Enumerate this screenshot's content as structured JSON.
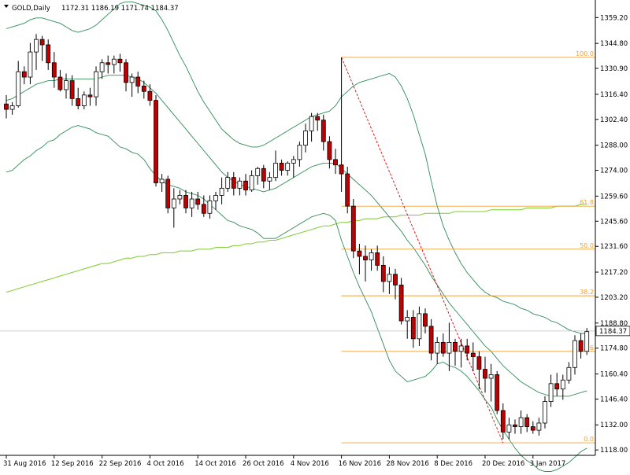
{
  "header": {
    "symbol": "GOLD,Daily",
    "ohlc": "1172.31 1186.19 1171.74 1184.37"
  },
  "colors": {
    "bull": "#ffffff",
    "bear": "#c00000",
    "wick": "#000000",
    "bollinger": "#2e8b57",
    "ma": "#7ccd2a",
    "fib": "#f0a030",
    "trend": "#e00000",
    "price_line": "#c0c0c0"
  },
  "chart_data": {
    "type": "candlestick",
    "title": "GOLD,Daily",
    "grid": false,
    "y_range": [
      1115,
      1369
    ],
    "y_ticks": [
      "1359.20",
      "1344.80",
      "1330.90",
      "1316.40",
      "1302.40",
      "1288.00",
      "1274.00",
      "1259.60",
      "1245.60",
      "1231.60",
      "1217.20",
      "1203.20",
      "1188.80",
      "1174.80",
      "1160.40",
      "1146.40",
      "1132.00",
      "1118.00"
    ],
    "x_ticks": [
      "31 Aug 2016",
      "12 Sep 2016",
      "22 Sep 2016",
      "4 Oct 2016",
      "14 Oct 2016",
      "26 Oct 2016",
      "4 Nov 2016",
      "16 Nov 2016",
      "28 Nov 2016",
      "8 Dec 2016",
      "20 Dec 2016",
      "3 Jan 2017"
    ],
    "x_tick_bar": [
      0,
      8,
      16,
      24,
      32,
      40,
      48,
      56,
      64,
      72,
      80,
      88
    ],
    "last_price": "1184.37",
    "candles": [
      [
        1311,
        1316,
        1303,
        1308
      ],
      [
        1308,
        1312,
        1305,
        1310
      ],
      [
        1310,
        1335,
        1309,
        1329
      ],
      [
        1329,
        1332,
        1322,
        1326
      ],
      [
        1326,
        1345,
        1322,
        1340
      ],
      [
        1340,
        1350,
        1330,
        1347
      ],
      [
        1347,
        1349,
        1335,
        1344
      ],
      [
        1344,
        1347,
        1330,
        1334
      ],
      [
        1334,
        1340,
        1320,
        1326
      ],
      [
        1326,
        1330,
        1318,
        1319
      ],
      [
        1319,
        1328,
        1314,
        1324
      ],
      [
        1324,
        1327,
        1310,
        1314
      ],
      [
        1314,
        1320,
        1308,
        1310
      ],
      [
        1310,
        1318,
        1308,
        1316
      ],
      [
        1316,
        1320,
        1310,
        1315
      ],
      [
        1315,
        1332,
        1310,
        1329
      ],
      [
        1329,
        1336,
        1325,
        1334
      ],
      [
        1334,
        1338,
        1328,
        1333
      ],
      [
        1333,
        1338,
        1328,
        1336
      ],
      [
        1336,
        1339,
        1329,
        1334
      ],
      [
        1334,
        1336,
        1318,
        1323
      ],
      [
        1323,
        1328,
        1315,
        1326
      ],
      [
        1326,
        1329,
        1317,
        1321
      ],
      [
        1321,
        1324,
        1314,
        1318
      ],
      [
        1318,
        1322,
        1310,
        1313
      ],
      [
        1313,
        1316,
        1265,
        1267
      ],
      [
        1267,
        1272,
        1262,
        1269
      ],
      [
        1269,
        1271,
        1250,
        1253
      ],
      [
        1253,
        1264,
        1242,
        1258
      ],
      [
        1258,
        1263,
        1255,
        1260
      ],
      [
        1260,
        1263,
        1250,
        1253
      ],
      [
        1253,
        1262,
        1248,
        1258
      ],
      [
        1258,
        1262,
        1252,
        1255
      ],
      [
        1255,
        1260,
        1248,
        1250
      ],
      [
        1250,
        1260,
        1247,
        1257
      ],
      [
        1257,
        1262,
        1252,
        1260
      ],
      [
        1260,
        1270,
        1255,
        1264
      ],
      [
        1264,
        1273,
        1262,
        1270
      ],
      [
        1270,
        1273,
        1260,
        1264
      ],
      [
        1264,
        1270,
        1260,
        1268
      ],
      [
        1268,
        1272,
        1260,
        1263
      ],
      [
        1263,
        1274,
        1262,
        1271
      ],
      [
        1271,
        1276,
        1266,
        1275
      ],
      [
        1275,
        1277,
        1264,
        1268
      ],
      [
        1268,
        1273,
        1263,
        1270
      ],
      [
        1270,
        1285,
        1268,
        1278
      ],
      [
        1278,
        1280,
        1271,
        1274
      ],
      [
        1274,
        1279,
        1271,
        1278
      ],
      [
        1278,
        1282,
        1270,
        1280
      ],
      [
        1280,
        1290,
        1276,
        1288
      ],
      [
        1288,
        1300,
        1284,
        1296
      ],
      [
        1296,
        1306,
        1290,
        1304
      ],
      [
        1304,
        1306,
        1296,
        1302
      ],
      [
        1302,
        1305,
        1285,
        1290
      ],
      [
        1290,
        1293,
        1275,
        1280
      ],
      [
        1280,
        1286,
        1272,
        1277
      ],
      [
        1277,
        1337,
        1262,
        1272
      ],
      [
        1272,
        1276,
        1250,
        1254
      ],
      [
        1254,
        1258,
        1225,
        1229
      ],
      [
        1229,
        1233,
        1216,
        1226
      ],
      [
        1226,
        1232,
        1212,
        1224
      ],
      [
        1224,
        1230,
        1218,
        1228
      ],
      [
        1228,
        1232,
        1218,
        1221
      ],
      [
        1221,
        1226,
        1206,
        1212
      ],
      [
        1212,
        1220,
        1205,
        1216
      ],
      [
        1216,
        1219,
        1202,
        1210
      ],
      [
        1210,
        1214,
        1188,
        1190
      ],
      [
        1190,
        1196,
        1180,
        1192
      ],
      [
        1192,
        1196,
        1175,
        1180
      ],
      [
        1180,
        1198,
        1176,
        1194
      ],
      [
        1194,
        1197,
        1183,
        1187
      ],
      [
        1187,
        1191,
        1168,
        1172
      ],
      [
        1172,
        1181,
        1166,
        1178
      ],
      [
        1178,
        1183,
        1170,
        1172
      ],
      [
        1172,
        1189,
        1162,
        1178
      ],
      [
        1178,
        1180,
        1165,
        1173
      ],
      [
        1173,
        1180,
        1164,
        1176
      ],
      [
        1176,
        1180,
        1168,
        1172
      ],
      [
        1172,
        1178,
        1162,
        1170
      ],
      [
        1170,
        1173,
        1152,
        1163
      ],
      [
        1163,
        1170,
        1150,
        1158
      ],
      [
        1158,
        1166,
        1145,
        1160
      ],
      [
        1160,
        1162,
        1138,
        1140
      ],
      [
        1140,
        1144,
        1124,
        1128
      ],
      [
        1128,
        1136,
        1124,
        1132
      ],
      [
        1132,
        1135,
        1127,
        1131
      ],
      [
        1131,
        1140,
        1127,
        1136
      ],
      [
        1136,
        1138,
        1128,
        1131
      ],
      [
        1131,
        1134,
        1127,
        1129
      ],
      [
        1129,
        1136,
        1126,
        1133
      ],
      [
        1133,
        1148,
        1130,
        1145
      ],
      [
        1145,
        1160,
        1142,
        1155
      ],
      [
        1155,
        1161,
        1148,
        1152
      ],
      [
        1152,
        1160,
        1146,
        1157
      ],
      [
        1157,
        1167,
        1155,
        1164
      ],
      [
        1164,
        1182,
        1160,
        1179
      ],
      [
        1179,
        1183,
        1169,
        1173
      ],
      [
        1173,
        1186,
        1171,
        1184
      ]
    ],
    "bollinger": {
      "upper": [
        1353,
        1354,
        1355,
        1356,
        1358,
        1359,
        1359,
        1358,
        1357,
        1356,
        1354,
        1352,
        1351,
        1352,
        1353,
        1355,
        1358,
        1361,
        1364,
        1367,
        1368,
        1368,
        1367,
        1366,
        1365,
        1363,
        1358,
        1352,
        1345,
        1338,
        1332,
        1325,
        1318,
        1312,
        1307,
        1302,
        1297,
        1294,
        1291,
        1289,
        1288,
        1287,
        1287,
        1288,
        1290,
        1292,
        1294,
        1296,
        1298,
        1300,
        1302,
        1304,
        1305,
        1306,
        1307,
        1310,
        1315,
        1318,
        1321,
        1323,
        1324,
        1325,
        1326,
        1327,
        1328,
        1326,
        1321,
        1314,
        1305,
        1294,
        1283,
        1268,
        1254,
        1243,
        1235,
        1228,
        1222,
        1217,
        1213,
        1209,
        1206,
        1204,
        1203,
        1201,
        1200,
        1199,
        1197,
        1196,
        1194,
        1193,
        1192,
        1190,
        1189,
        1187,
        1185,
        1184,
        1183,
        1183
      ],
      "middle": [
        1313,
        1314,
        1316,
        1318,
        1320,
        1322,
        1323,
        1324,
        1324,
        1325,
        1325,
        1325,
        1325,
        1325,
        1325,
        1325,
        1326,
        1327,
        1327,
        1327,
        1327,
        1326,
        1325,
        1323,
        1320,
        1317,
        1313,
        1309,
        1305,
        1301,
        1297,
        1293,
        1289,
        1285,
        1281,
        1277,
        1273,
        1270,
        1268,
        1266,
        1265,
        1264,
        1263,
        1262,
        1263,
        1264,
        1266,
        1268,
        1270,
        1272,
        1274,
        1276,
        1277,
        1278,
        1278,
        1278,
        1275,
        1272,
        1269,
        1266,
        1263,
        1260,
        1256,
        1252,
        1248,
        1244,
        1240,
        1235,
        1231,
        1226,
        1221,
        1215,
        1210,
        1205,
        1200,
        1196,
        1192,
        1188,
        1184,
        1180,
        1176,
        1173,
        1169,
        1165,
        1162,
        1159,
        1156,
        1154,
        1152,
        1150,
        1149,
        1148,
        1148,
        1148,
        1148,
        1149,
        1150,
        1151
      ],
      "lower": [
        1273,
        1274,
        1277,
        1280,
        1282,
        1285,
        1287,
        1290,
        1291,
        1294,
        1296,
        1298,
        1299,
        1298,
        1297,
        1295,
        1294,
        1293,
        1290,
        1287,
        1286,
        1284,
        1283,
        1280,
        1275,
        1271,
        1268,
        1266,
        1265,
        1264,
        1262,
        1261,
        1260,
        1258,
        1255,
        1252,
        1249,
        1246,
        1245,
        1243,
        1242,
        1241,
        1239,
        1236,
        1236,
        1236,
        1238,
        1240,
        1242,
        1244,
        1246,
        1248,
        1249,
        1250,
        1249,
        1246,
        1235,
        1226,
        1217,
        1209,
        1202,
        1195,
        1186,
        1177,
        1168,
        1162,
        1159,
        1156,
        1157,
        1158,
        1159,
        1162,
        1166,
        1167,
        1165,
        1164,
        1162,
        1159,
        1155,
        1151,
        1146,
        1142,
        1135,
        1129,
        1124,
        1119,
        1115,
        1112,
        1110,
        1107,
        1106,
        1106,
        1107,
        1109,
        1111,
        1114,
        1117,
        1119
      ]
    },
    "moving_average": [
      1206,
      1207,
      1208,
      1209,
      1210,
      1211,
      1212,
      1213,
      1214,
      1215,
      1216,
      1217,
      1218,
      1219,
      1220,
      1221,
      1222,
      1222,
      1223,
      1224,
      1225,
      1225,
      1226,
      1226,
      1227,
      1227,
      1228,
      1228,
      1228,
      1229,
      1229,
      1229,
      1230,
      1230,
      1230,
      1231,
      1231,
      1231,
      1232,
      1232,
      1233,
      1233,
      1234,
      1234,
      1235,
      1235,
      1236,
      1237,
      1238,
      1239,
      1240,
      1241,
      1242,
      1243,
      1243,
      1244,
      1245,
      1245,
      1246,
      1246,
      1247,
      1247,
      1247,
      1248,
      1248,
      1248,
      1249,
      1249,
      1249,
      1249,
      1250,
      1250,
      1250,
      1250,
      1250,
      1251,
      1251,
      1251,
      1251,
      1251,
      1251,
      1252,
      1252,
      1252,
      1252,
      1252,
      1252,
      1253,
      1253,
      1253,
      1253,
      1253,
      1254,
      1254,
      1254,
      1254,
      1255,
      1255
    ],
    "fibonacci": {
      "start_bar": 56,
      "levels": [
        {
          "label": "100.0",
          "price": 1337
        },
        {
          "label": "61.8",
          "price": 1254
        },
        {
          "label": "50.0",
          "price": 1230
        },
        {
          "label": "38.2",
          "price": 1204
        },
        {
          "label": "23.6",
          "price": 1173
        },
        {
          "label": "0.0",
          "price": 1122
        }
      ],
      "trend_from": {
        "bar": 56,
        "price": 1337
      },
      "trend_to": {
        "bar": 83,
        "price": 1122
      }
    }
  }
}
